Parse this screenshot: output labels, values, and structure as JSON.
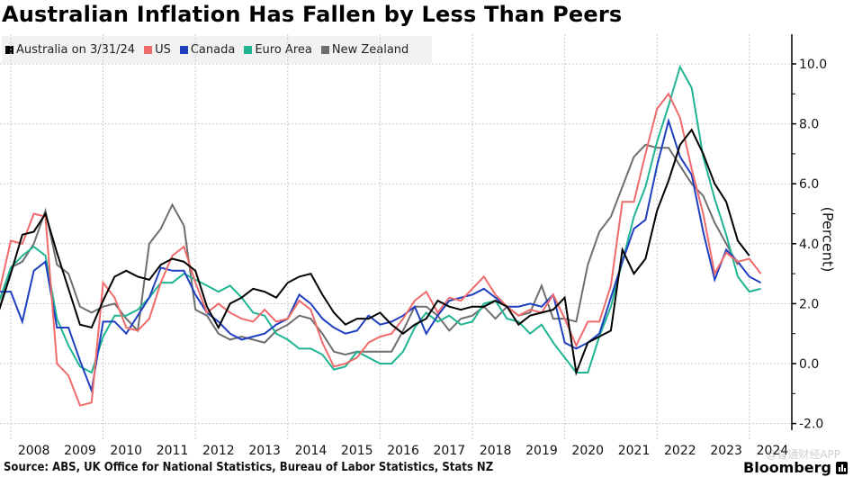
{
  "title": "Australian Inflation Has Fallen by Less Than Peers",
  "source": "Source: ABS, UK Office for National Statistics, Bureau of Labor Statistics, Stats NZ",
  "brand": "Bloomberg",
  "watermark": "@智通财经APP",
  "chart_data": {
    "type": "line",
    "title": "Australian Inflation Has Fallen by Less Than Peers",
    "xlabel": "",
    "ylabel": "(Percent)",
    "ylim": [
      -2.5,
      11.2
    ],
    "xlim": [
      2007.75,
      2024.5
    ],
    "grid": true,
    "legend_position": "top-left",
    "y_ticks": [
      {
        "value": 10,
        "label": "10.0"
      },
      {
        "value": 8,
        "label": "8.0"
      },
      {
        "value": 6,
        "label": "6.0"
      },
      {
        "value": 4,
        "label": "4.0"
      },
      {
        "value": 2,
        "label": "2.0"
      },
      {
        "value": 0,
        "label": "0.0"
      },
      {
        "value": -2,
        "label": "-2.0"
      }
    ],
    "x_ticks": [
      {
        "value": 2008.5,
        "label": "2008"
      },
      {
        "value": 2009.5,
        "label": "2009"
      },
      {
        "value": 2010.5,
        "label": "2010"
      },
      {
        "value": 2011.5,
        "label": "2011"
      },
      {
        "value": 2012.5,
        "label": "2012"
      },
      {
        "value": 2013.5,
        "label": "2013"
      },
      {
        "value": 2014.5,
        "label": "2014"
      },
      {
        "value": 2015.5,
        "label": "2015"
      },
      {
        "value": 2016.5,
        "label": "2016"
      },
      {
        "value": 2017.5,
        "label": "2017"
      },
      {
        "value": 2018.5,
        "label": "2018"
      },
      {
        "value": 2019.5,
        "label": "2019"
      },
      {
        "value": 2020.5,
        "label": "2020"
      },
      {
        "value": 2021.5,
        "label": "2021"
      },
      {
        "value": 2022.5,
        "label": "2022"
      },
      {
        "value": 2023.5,
        "label": "2023"
      },
      {
        "value": 2024.5,
        "label": "2024"
      }
    ],
    "x_start": 2007.75,
    "x_step": 0.25,
    "series": [
      {
        "name": "Australia on 3/31/24",
        "color": "#000000",
        "values": [
          1.8,
          3.0,
          4.3,
          4.4,
          5.0,
          3.7,
          2.5,
          1.3,
          1.2,
          2.1,
          2.9,
          3.1,
          2.9,
          2.8,
          3.3,
          3.5,
          3.4,
          3.1,
          1.9,
          1.2,
          2.0,
          2.2,
          2.5,
          2.4,
          2.2,
          2.7,
          2.9,
          3.0,
          2.3,
          1.7,
          1.3,
          1.5,
          1.5,
          1.7,
          1.3,
          1.0,
          1.3,
          1.5,
          2.1,
          1.9,
          1.8,
          1.9,
          1.9,
          2.1,
          1.9,
          1.3,
          1.6,
          1.7,
          1.8,
          2.2,
          -0.3,
          0.7,
          0.9,
          1.1,
          3.8,
          3.0,
          3.5,
          5.1,
          6.1,
          7.3,
          7.8,
          7.0,
          6.0,
          5.4,
          4.1,
          3.6
        ]
      },
      {
        "name": "US",
        "color": "#f06b6b",
        "values": [
          2.4,
          4.1,
          4.0,
          5.0,
          4.9,
          0.0,
          -0.4,
          -1.4,
          -1.3,
          2.7,
          2.2,
          1.2,
          1.1,
          1.5,
          2.7,
          3.6,
          3.9,
          2.7,
          1.7,
          2.0,
          1.7,
          1.5,
          1.4,
          1.8,
          1.4,
          1.5,
          2.1,
          1.8,
          0.7,
          -0.1,
          0.0,
          0.2,
          0.7,
          0.9,
          1.0,
          1.5,
          2.1,
          2.4,
          1.7,
          2.2,
          2.1,
          2.5,
          2.9,
          2.3,
          1.9,
          1.6,
          1.8,
          1.7,
          2.3,
          1.5,
          0.6,
          1.4,
          1.4,
          2.6,
          5.4,
          5.4,
          7.0,
          8.5,
          9.0,
          8.2,
          6.5,
          5.0,
          3.0,
          3.7,
          3.4,
          3.5,
          3.0
        ]
      },
      {
        "name": "Canada",
        "color": "#1f3fbf",
        "values": [
          2.4,
          2.4,
          1.4,
          3.1,
          3.4,
          1.2,
          1.2,
          0.1,
          -0.9,
          1.4,
          1.4,
          1.0,
          1.6,
          2.2,
          3.2,
          3.1,
          3.1,
          2.3,
          1.7,
          1.4,
          1.0,
          0.8,
          0.9,
          1.0,
          1.3,
          1.5,
          2.3,
          2.0,
          1.5,
          1.2,
          1.0,
          1.1,
          1.6,
          1.3,
          1.4,
          1.6,
          1.9,
          1.0,
          1.6,
          2.1,
          2.2,
          2.3,
          2.5,
          2.2,
          1.9,
          1.9,
          2.0,
          1.9,
          2.3,
          0.7,
          0.5,
          0.7,
          1.0,
          2.2,
          3.4,
          4.5,
          4.8,
          6.6,
          8.1,
          6.9,
          6.3,
          4.4,
          2.8,
          3.8,
          3.4,
          2.9,
          2.7
        ]
      },
      {
        "name": "Euro Area",
        "color": "#1fb592",
        "values": [
          2.1,
          3.2,
          3.6,
          3.9,
          3.6,
          1.5,
          0.6,
          -0.1,
          -0.3,
          0.9,
          1.6,
          1.6,
          1.8,
          2.2,
          2.7,
          2.7,
          3.0,
          2.8,
          2.6,
          2.4,
          2.6,
          2.2,
          1.7,
          1.6,
          1.0,
          0.8,
          0.5,
          0.5,
          0.3,
          -0.2,
          -0.1,
          0.4,
          0.2,
          0.0,
          0.0,
          0.4,
          1.2,
          1.7,
          1.4,
          1.6,
          1.3,
          1.4,
          2.0,
          2.1,
          1.5,
          1.4,
          1.0,
          1.3,
          0.7,
          0.2,
          -0.3,
          -0.3,
          0.9,
          1.9,
          3.4,
          4.9,
          5.9,
          7.4,
          8.6,
          9.9,
          9.2,
          6.9,
          5.5,
          4.3,
          2.9,
          2.4,
          2.5
        ]
      },
      {
        "name": "New Zealand",
        "color": "#6e6e6e",
        "values": [
          1.8,
          3.2,
          3.4,
          4.0,
          5.1,
          3.3,
          3.0,
          1.9,
          1.7,
          1.9,
          2.0,
          1.5,
          1.1,
          4.0,
          4.5,
          5.3,
          4.6,
          1.8,
          1.6,
          1.0,
          0.8,
          0.9,
          0.8,
          0.7,
          1.1,
          1.3,
          1.6,
          1.5,
          1.0,
          0.4,
          0.3,
          0.4,
          0.4,
          0.4,
          0.4,
          1.1,
          1.9,
          1.9,
          1.6,
          1.1,
          1.5,
          1.6,
          1.9,
          1.5,
          1.9,
          1.6,
          1.7,
          2.6,
          1.5,
          1.5,
          1.4,
          3.3,
          4.4,
          4.9,
          5.9,
          6.9,
          7.3,
          7.2,
          7.2,
          6.6,
          6.0,
          5.6,
          4.7,
          4.0,
          3.3
        ]
      }
    ]
  }
}
